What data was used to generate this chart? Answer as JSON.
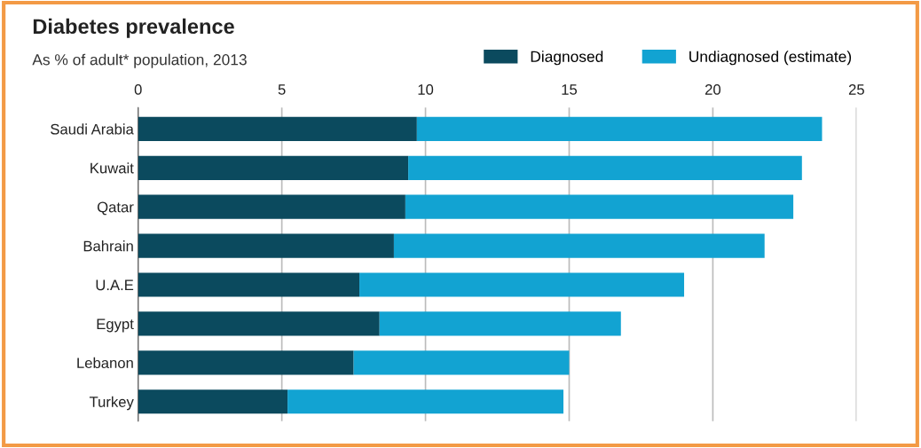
{
  "chart_data": {
    "type": "bar",
    "orientation": "horizontal",
    "stacked": true,
    "title": "Diabetes prevalence",
    "subtitle": "As % of adult* population, 2013",
    "categories": [
      "Saudi Arabia",
      "Kuwait",
      "Qatar",
      "Bahrain",
      "U.A.E",
      "Egypt",
      "Lebanon",
      "Turkey"
    ],
    "series": [
      {
        "name": "Diagnosed",
        "color": "#0b4a5e",
        "values": [
          9.7,
          9.4,
          9.3,
          8.9,
          7.7,
          8.4,
          7.5,
          5.2
        ]
      },
      {
        "name": "Undiagnosed (estimate)",
        "color": "#12a3d2",
        "values": [
          14.1,
          13.7,
          13.5,
          12.9,
          11.3,
          8.4,
          7.5,
          9.6
        ]
      }
    ],
    "xlim": [
      0,
      25
    ],
    "xticks": [
      0,
      5,
      10,
      15,
      20,
      25
    ],
    "grid": "x",
    "legend": "top right"
  }
}
